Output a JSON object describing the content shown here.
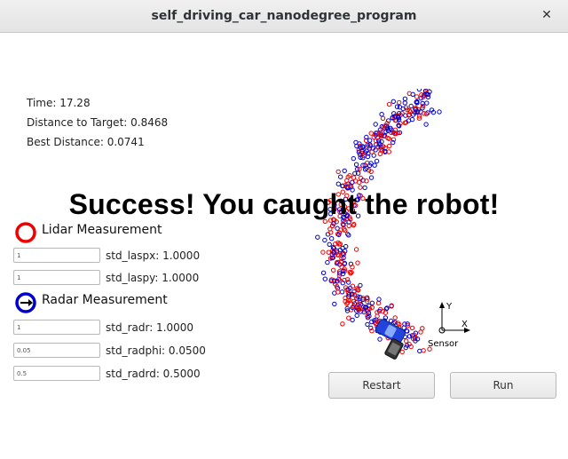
{
  "window": {
    "title": "self_driving_car_nanodegree_program",
    "close_glyph": "✕"
  },
  "stats": {
    "time": "Time: 17.28",
    "distance": "Distance to Target: 0.8468",
    "best": "Best Distance: 0.0741"
  },
  "banner": "Success! You caught the robot!",
  "lidar": {
    "label": "Lidar Measurement",
    "params": [
      {
        "value": "1",
        "label": "std_laspx: 1.0000"
      },
      {
        "value": "1",
        "label": "std_laspy: 1.0000"
      }
    ]
  },
  "radar": {
    "label": "Radar Measurement",
    "params": [
      {
        "value": "1",
        "label": "std_radr: 1.0000"
      },
      {
        "value": "0.05",
        "label": "std_radphi: 0.0500"
      },
      {
        "value": "0.5",
        "label": "std_radrd: 0.5000"
      }
    ]
  },
  "axes": {
    "x": "X",
    "y": "Y",
    "sensor": "Sensor"
  },
  "buttons": {
    "restart": "Restart",
    "run": "Run"
  },
  "colors": {
    "lidar": "#ee0000",
    "radar": "#0000cc",
    "car": "#2244dd"
  }
}
